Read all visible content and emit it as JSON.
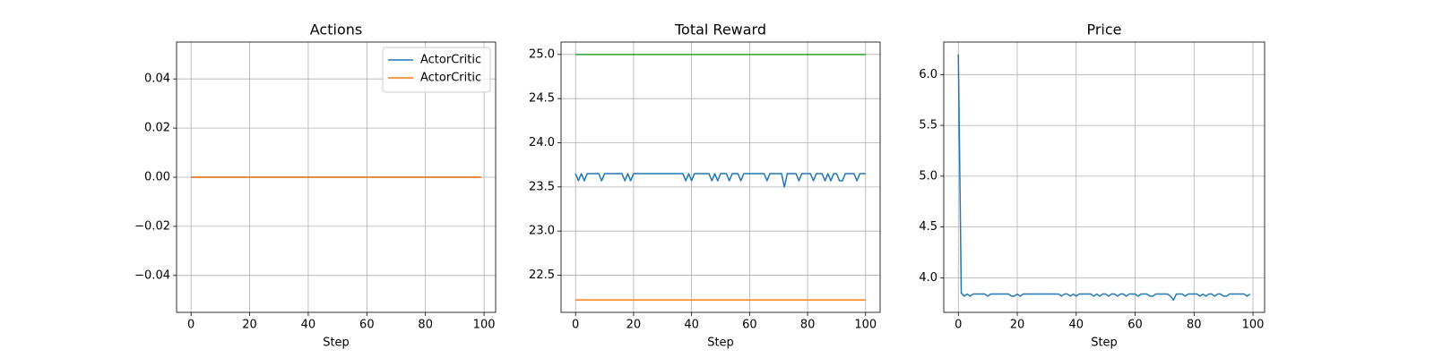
{
  "chart_data": [
    {
      "type": "line",
      "title": "Actions",
      "xlabel": "Step",
      "grid": true,
      "legend": "upper right",
      "x": [
        0,
        1,
        2,
        3,
        4,
        5,
        6,
        7,
        8,
        9,
        10,
        11,
        12,
        13,
        14,
        15,
        16,
        17,
        18,
        19,
        20,
        21,
        22,
        23,
        24,
        25,
        26,
        27,
        28,
        29,
        30,
        31,
        32,
        33,
        34,
        35,
        36,
        37,
        38,
        39,
        40,
        41,
        42,
        43,
        44,
        45,
        46,
        47,
        48,
        49,
        50,
        51,
        52,
        53,
        54,
        55,
        56,
        57,
        58,
        59,
        60,
        61,
        62,
        63,
        64,
        65,
        66,
        67,
        68,
        69,
        70,
        71,
        72,
        73,
        74,
        75,
        76,
        77,
        78,
        79,
        80,
        81,
        82,
        83,
        84,
        85,
        86,
        87,
        88,
        89,
        90,
        91,
        92,
        93,
        94,
        95,
        96,
        97,
        98,
        99
      ],
      "xlim": [
        -4.95,
        103.95
      ],
      "xticks": [
        0,
        20,
        40,
        60,
        80,
        100
      ],
      "ylim": [
        -0.055,
        0.055
      ],
      "yticks": [
        {
          "value": -0.04,
          "label": "−0.04"
        },
        {
          "value": -0.02,
          "label": "−0.02"
        },
        {
          "value": 0,
          "label": "0.00"
        },
        {
          "value": 0.02,
          "label": "0.02"
        },
        {
          "value": 0.04,
          "label": "0.04"
        }
      ],
      "series": [
        {
          "name": "ActorCritic",
          "color": "#1f77b4",
          "values": [
            0,
            0,
            0,
            0,
            0,
            0,
            0,
            0,
            0,
            0,
            0,
            0,
            0,
            0,
            0,
            0,
            0,
            0,
            0,
            0,
            0,
            0,
            0,
            0,
            0,
            0,
            0,
            0,
            0,
            0,
            0,
            0,
            0,
            0,
            0,
            0,
            0,
            0,
            0,
            0,
            0,
            0,
            0,
            0,
            0,
            0,
            0,
            0,
            0,
            0,
            0,
            0,
            0,
            0,
            0,
            0,
            0,
            0,
            0,
            0,
            0,
            0,
            0,
            0,
            0,
            0,
            0,
            0,
            0,
            0,
            0,
            0,
            0,
            0,
            0,
            0,
            0,
            0,
            0,
            0,
            0,
            0,
            0,
            0,
            0,
            0,
            0,
            0,
            0,
            0,
            0,
            0,
            0,
            0,
            0,
            0,
            0,
            0,
            0,
            0
          ]
        },
        {
          "name": "ActorCritic",
          "color": "#ff7f0e",
          "values": [
            0,
            0,
            0,
            0,
            0,
            0,
            0,
            0,
            0,
            0,
            0,
            0,
            0,
            0,
            0,
            0,
            0,
            0,
            0,
            0,
            0,
            0,
            0,
            0,
            0,
            0,
            0,
            0,
            0,
            0,
            0,
            0,
            0,
            0,
            0,
            0,
            0,
            0,
            0,
            0,
            0,
            0,
            0,
            0,
            0,
            0,
            0,
            0,
            0,
            0,
            0,
            0,
            0,
            0,
            0,
            0,
            0,
            0,
            0,
            0,
            0,
            0,
            0,
            0,
            0,
            0,
            0,
            0,
            0,
            0,
            0,
            0,
            0,
            0,
            0,
            0,
            0,
            0,
            0,
            0,
            0,
            0,
            0,
            0,
            0,
            0,
            0,
            0,
            0,
            0,
            0,
            0,
            0,
            0,
            0,
            0,
            0,
            0,
            0,
            0
          ]
        }
      ]
    },
    {
      "type": "line",
      "title": "Total Reward",
      "xlabel": "Step",
      "grid": true,
      "x": [
        0,
        1,
        2,
        3,
        4,
        5,
        6,
        7,
        8,
        9,
        10,
        11,
        12,
        13,
        14,
        15,
        16,
        17,
        18,
        19,
        20,
        21,
        22,
        23,
        24,
        25,
        26,
        27,
        28,
        29,
        30,
        31,
        32,
        33,
        34,
        35,
        36,
        37,
        38,
        39,
        40,
        41,
        42,
        43,
        44,
        45,
        46,
        47,
        48,
        49,
        50,
        51,
        52,
        53,
        54,
        55,
        56,
        57,
        58,
        59,
        60,
        61,
        62,
        63,
        64,
        65,
        66,
        67,
        68,
        69,
        70,
        71,
        72,
        73,
        74,
        75,
        76,
        77,
        78,
        79,
        80,
        81,
        82,
        83,
        84,
        85,
        86,
        87,
        88,
        89,
        90,
        91,
        92,
        93,
        94,
        95,
        96,
        97,
        98,
        99,
        100
      ],
      "xlim": [
        -5,
        105
      ],
      "xticks": [
        0,
        20,
        40,
        60,
        80,
        100
      ],
      "ylim": [
        22.08,
        25.14
      ],
      "yticks": [
        22.5,
        {
          "value": 23,
          "label": "23.0"
        },
        23.5,
        {
          "value": 24,
          "label": "24.0"
        },
        24.5,
        {
          "value": 25,
          "label": "25.0"
        }
      ],
      "series": [
        {
          "color": "#1f77b4",
          "values": [
            23.65,
            23.57,
            23.65,
            23.57,
            23.65,
            23.65,
            23.65,
            23.65,
            23.65,
            23.57,
            23.65,
            23.65,
            23.65,
            23.65,
            23.65,
            23.65,
            23.65,
            23.57,
            23.65,
            23.57,
            23.65,
            23.65,
            23.65,
            23.65,
            23.65,
            23.65,
            23.65,
            23.65,
            23.65,
            23.65,
            23.65,
            23.65,
            23.65,
            23.65,
            23.65,
            23.65,
            23.65,
            23.65,
            23.57,
            23.65,
            23.57,
            23.65,
            23.65,
            23.65,
            23.65,
            23.65,
            23.65,
            23.57,
            23.65,
            23.57,
            23.65,
            23.65,
            23.65,
            23.57,
            23.65,
            23.65,
            23.65,
            23.57,
            23.65,
            23.65,
            23.65,
            23.65,
            23.65,
            23.65,
            23.65,
            23.65,
            23.57,
            23.65,
            23.65,
            23.65,
            23.65,
            23.65,
            23.5,
            23.65,
            23.65,
            23.65,
            23.65,
            23.57,
            23.65,
            23.65,
            23.65,
            23.65,
            23.57,
            23.65,
            23.65,
            23.65,
            23.57,
            23.65,
            23.57,
            23.65,
            23.65,
            23.57,
            23.57,
            23.65,
            23.65,
            23.65,
            23.65,
            23.57,
            23.65,
            23.65,
            23.65
          ]
        },
        {
          "color": "#ff7f0e",
          "values": [
            22.22,
            22.22,
            22.22,
            22.22,
            22.22,
            22.22,
            22.22,
            22.22,
            22.22,
            22.22,
            22.22,
            22.22,
            22.22,
            22.22,
            22.22,
            22.22,
            22.22,
            22.22,
            22.22,
            22.22,
            22.22,
            22.22,
            22.22,
            22.22,
            22.22,
            22.22,
            22.22,
            22.22,
            22.22,
            22.22,
            22.22,
            22.22,
            22.22,
            22.22,
            22.22,
            22.22,
            22.22,
            22.22,
            22.22,
            22.22,
            22.22,
            22.22,
            22.22,
            22.22,
            22.22,
            22.22,
            22.22,
            22.22,
            22.22,
            22.22,
            22.22,
            22.22,
            22.22,
            22.22,
            22.22,
            22.22,
            22.22,
            22.22,
            22.22,
            22.22,
            22.22,
            22.22,
            22.22,
            22.22,
            22.22,
            22.22,
            22.22,
            22.22,
            22.22,
            22.22,
            22.22,
            22.22,
            22.22,
            22.22,
            22.22,
            22.22,
            22.22,
            22.22,
            22.22,
            22.22,
            22.22,
            22.22,
            22.22,
            22.22,
            22.22,
            22.22,
            22.22,
            22.22,
            22.22,
            22.22,
            22.22,
            22.22,
            22.22,
            22.22,
            22.22,
            22.22,
            22.22,
            22.22,
            22.22,
            22.22,
            22.22
          ]
        },
        {
          "color": "#2ca02c",
          "values": [
            25,
            25,
            25,
            25,
            25,
            25,
            25,
            25,
            25,
            25,
            25,
            25,
            25,
            25,
            25,
            25,
            25,
            25,
            25,
            25,
            25,
            25,
            25,
            25,
            25,
            25,
            25,
            25,
            25,
            25,
            25,
            25,
            25,
            25,
            25,
            25,
            25,
            25,
            25,
            25,
            25,
            25,
            25,
            25,
            25,
            25,
            25,
            25,
            25,
            25,
            25,
            25,
            25,
            25,
            25,
            25,
            25,
            25,
            25,
            25,
            25,
            25,
            25,
            25,
            25,
            25,
            25,
            25,
            25,
            25,
            25,
            25,
            25,
            25,
            25,
            25,
            25,
            25,
            25,
            25,
            25,
            25,
            25,
            25,
            25,
            25,
            25,
            25,
            25,
            25,
            25,
            25,
            25,
            25,
            25,
            25,
            25,
            25,
            25,
            25,
            25
          ]
        }
      ]
    },
    {
      "type": "line",
      "title": "Price",
      "xlabel": "Step",
      "grid": true,
      "x": [
        0,
        1,
        2,
        3,
        4,
        5,
        6,
        7,
        8,
        9,
        10,
        11,
        12,
        13,
        14,
        15,
        16,
        17,
        18,
        19,
        20,
        21,
        22,
        23,
        24,
        25,
        26,
        27,
        28,
        29,
        30,
        31,
        32,
        33,
        34,
        35,
        36,
        37,
        38,
        39,
        40,
        41,
        42,
        43,
        44,
        45,
        46,
        47,
        48,
        49,
        50,
        51,
        52,
        53,
        54,
        55,
        56,
        57,
        58,
        59,
        60,
        61,
        62,
        63,
        64,
        65,
        66,
        67,
        68,
        69,
        70,
        71,
        72,
        73,
        74,
        75,
        76,
        77,
        78,
        79,
        80,
        81,
        82,
        83,
        84,
        85,
        86,
        87,
        88,
        89,
        90,
        91,
        92,
        93,
        94,
        95,
        96,
        97,
        98,
        99
      ],
      "xlim": [
        -4.95,
        103.95
      ],
      "xticks": [
        0,
        20,
        40,
        60,
        80,
        100
      ],
      "ylim": [
        3.66,
        6.32
      ],
      "yticks": [
        {
          "value": 4,
          "label": "4.0"
        },
        4.5,
        {
          "value": 5,
          "label": "5.0"
        },
        5.5,
        {
          "value": 6,
          "label": "6.0"
        }
      ],
      "series": [
        {
          "color": "#1f77b4",
          "values": [
            6.2,
            3.85,
            3.82,
            3.84,
            3.82,
            3.84,
            3.84,
            3.84,
            3.84,
            3.84,
            3.82,
            3.84,
            3.84,
            3.84,
            3.84,
            3.84,
            3.84,
            3.84,
            3.82,
            3.82,
            3.84,
            3.82,
            3.84,
            3.84,
            3.84,
            3.84,
            3.84,
            3.84,
            3.84,
            3.84,
            3.84,
            3.84,
            3.84,
            3.84,
            3.84,
            3.82,
            3.84,
            3.84,
            3.82,
            3.84,
            3.82,
            3.84,
            3.84,
            3.84,
            3.84,
            3.84,
            3.82,
            3.84,
            3.82,
            3.84,
            3.84,
            3.82,
            3.84,
            3.84,
            3.82,
            3.84,
            3.84,
            3.82,
            3.84,
            3.84,
            3.84,
            3.82,
            3.84,
            3.84,
            3.84,
            3.82,
            3.82,
            3.84,
            3.84,
            3.84,
            3.84,
            3.84,
            3.82,
            3.78,
            3.84,
            3.84,
            3.84,
            3.82,
            3.84,
            3.84,
            3.84,
            3.84,
            3.82,
            3.84,
            3.82,
            3.84,
            3.84,
            3.82,
            3.84,
            3.84,
            3.82,
            3.82,
            3.84,
            3.84,
            3.84,
            3.84,
            3.84,
            3.84,
            3.82,
            3.84
          ]
        }
      ]
    }
  ]
}
